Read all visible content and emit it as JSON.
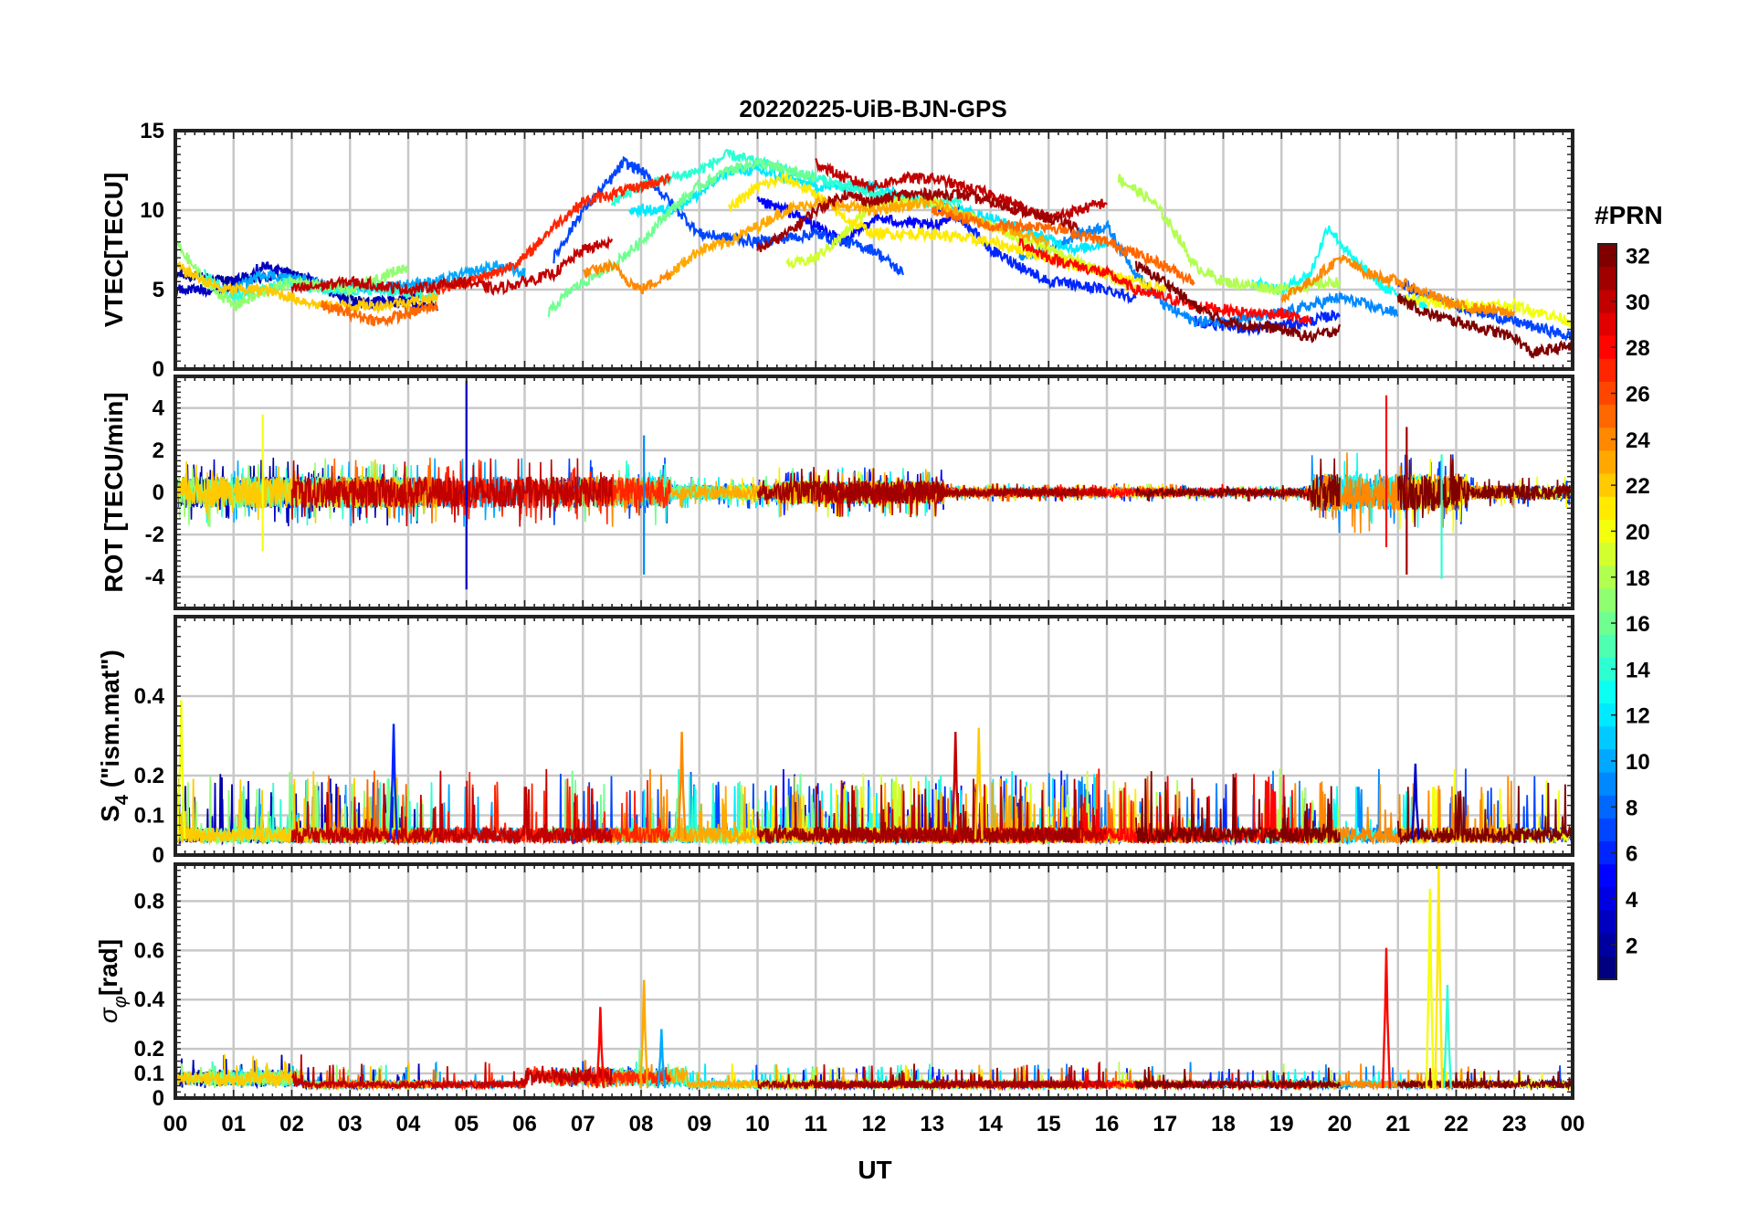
{
  "chart_data": {
    "type": "line",
    "title": "20220225-UiB-BJN-GPS",
    "xlabel": "UT",
    "xlim": [
      0,
      24
    ],
    "x_tick_labels": [
      "00",
      "01",
      "02",
      "03",
      "04",
      "05",
      "06",
      "07",
      "08",
      "09",
      "10",
      "11",
      "12",
      "13",
      "14",
      "15",
      "16",
      "17",
      "18",
      "19",
      "20",
      "21",
      "22",
      "23",
      "00"
    ],
    "panels": [
      {
        "id": "vtec",
        "ylabel": "VTEC[TECU]",
        "ylim": [
          0,
          15
        ],
        "yticks": [
          0,
          5,
          10,
          15
        ],
        "ytick_labels": [
          "0",
          "5",
          "10",
          "15"
        ],
        "baseline_envelope": {
          "x": [
            0,
            2,
            4,
            5,
            6,
            7,
            8,
            9,
            10,
            11,
            12,
            13,
            14,
            15,
            16,
            17,
            18,
            19,
            20,
            21,
            22,
            23,
            24
          ],
          "y": [
            5.5,
            5.0,
            4.5,
            5.5,
            6.0,
            8.0,
            9.5,
            11.0,
            11.5,
            11.0,
            10.5,
            10.5,
            9.5,
            8.0,
            6.5,
            5.0,
            4.0,
            4.5,
            6.0,
            5.0,
            4.0,
            3.0,
            2.5
          ]
        }
      },
      {
        "id": "rot",
        "ylabel": "ROT [TECU/min]",
        "ylim": [
          -5.5,
          5.5
        ],
        "yticks": [
          -4,
          -2,
          0,
          2,
          4
        ],
        "ytick_labels": [
          "-4",
          "-2",
          "0",
          "2",
          "4"
        ],
        "spikes": [
          {
            "x": 5.0,
            "y_max": 5.3,
            "y_min": -4.6,
            "prn": 3
          },
          {
            "x": 8.05,
            "y_max": 2.7,
            "y_min": -3.9,
            "prn": 9
          },
          {
            "x": 20.8,
            "y_max": 4.6,
            "y_min": -2.6,
            "prn": 28
          },
          {
            "x": 21.15,
            "y_max": 3.1,
            "y_min": -3.9,
            "prn": 31
          },
          {
            "x": 21.75,
            "y_max": 1.8,
            "y_min": -4.1,
            "prn": 14
          },
          {
            "x": 1.5,
            "y_max": 3.7,
            "y_min": -2.8,
            "prn": 20
          }
        ]
      },
      {
        "id": "s4",
        "ylabel": "S4 (\"ism.mat\")",
        "ylim": [
          0,
          0.6
        ],
        "yticks": [
          0,
          0.1,
          0.2,
          0.4
        ],
        "ytick_labels": [
          "0",
          "0.1",
          "0.2",
          "0.4"
        ],
        "peaks": [
          {
            "x": 0.1,
            "y": 0.39,
            "prn": 20
          },
          {
            "x": 3.75,
            "y": 0.33,
            "prn": 6
          },
          {
            "x": 8.7,
            "y": 0.31,
            "prn": 24
          },
          {
            "x": 13.4,
            "y": 0.31,
            "prn": 30
          },
          {
            "x": 13.8,
            "y": 0.32,
            "prn": 22
          },
          {
            "x": 21.3,
            "y": 0.23,
            "prn": 3
          }
        ]
      },
      {
        "id": "sigma_phi",
        "ylabel": "σφ[rad]",
        "ylim": [
          0,
          0.95
        ],
        "yticks": [
          0,
          0.1,
          0.2,
          0.4,
          0.6,
          0.8
        ],
        "ytick_labels": [
          "0",
          "0.1",
          "0.2",
          "0.4",
          "0.6",
          "0.8"
        ],
        "peaks": [
          {
            "x": 7.3,
            "y": 0.37,
            "prn": 28
          },
          {
            "x": 8.05,
            "y": 0.48,
            "prn": 23
          },
          {
            "x": 8.35,
            "y": 0.28,
            "prn": 10
          },
          {
            "x": 20.8,
            "y": 0.61,
            "prn": 28
          },
          {
            "x": 21.55,
            "y": 0.85,
            "prn": 20
          },
          {
            "x": 21.7,
            "y": 0.95,
            "prn": 21
          },
          {
            "x": 21.85,
            "y": 0.46,
            "prn": 14
          }
        ]
      }
    ],
    "colorbar": {
      "label": "#PRN",
      "colormap": "jet",
      "range": [
        1,
        32
      ],
      "ticks": [
        2,
        4,
        6,
        8,
        10,
        12,
        14,
        16,
        18,
        20,
        22,
        24,
        26,
        28,
        30,
        32
      ],
      "tick_labels": [
        "2",
        "4",
        "6",
        "8",
        "10",
        "12",
        "14",
        "16",
        "18",
        "20",
        "22",
        "24",
        "26",
        "28",
        "30",
        "32"
      ]
    },
    "series": [
      {
        "name": "PRN 2",
        "prn": 2,
        "vtec": {
          "x": [
            0.0,
            1.0,
            2.0,
            3.0,
            3.5,
            4.5
          ],
          "y": [
            6.0,
            5.5,
            6.0,
            4.5,
            4.2,
            4.0
          ]
        }
      },
      {
        "name": "PRN 3",
        "prn": 3,
        "vtec": {
          "x": [
            0.0,
            0.8,
            1.5,
            2.4,
            3.0,
            4.2
          ],
          "y": [
            5.0,
            5.0,
            6.5,
            5.5,
            4.0,
            4.5
          ]
        }
      },
      {
        "name": "PRN 5",
        "prn": 5,
        "vtec": {
          "x": [
            10.0,
            10.5,
            11.5,
            12.0,
            13.0,
            13.5
          ],
          "y": [
            10.5,
            10.0,
            8.0,
            9.5,
            9.0,
            10.0
          ]
        }
      },
      {
        "name": "PRN 6",
        "prn": 6,
        "vtec": {
          "x": [
            13.0,
            13.5,
            14.0,
            15.0,
            16.0,
            16.5
          ],
          "y": [
            10.5,
            9.5,
            7.5,
            5.5,
            5.0,
            4.5
          ]
        }
      },
      {
        "name": "PRN 6",
        "prn": 6,
        "vtec": {
          "x": [
            17.5,
            18.5,
            19.5,
            20.0
          ],
          "y": [
            3.0,
            2.5,
            3.0,
            3.5
          ]
        }
      },
      {
        "name": "PRN 7",
        "prn": 7,
        "vtec": {
          "x": [
            6.5,
            7.0,
            7.5,
            7.7,
            8.0,
            8.5,
            9.0,
            10.0,
            11.0,
            12.0,
            12.5
          ],
          "y": [
            7.0,
            10.0,
            12.0,
            13.0,
            12.5,
            10.5,
            8.5,
            8.0,
            8.5,
            7.5,
            6.0
          ]
        }
      },
      {
        "name": "PRN 7",
        "prn": 7,
        "vtec": {
          "x": [
            21.0,
            21.5,
            22.0,
            23.0,
            24.0
          ],
          "y": [
            5.5,
            4.5,
            4.0,
            3.0,
            2.0
          ]
        }
      },
      {
        "name": "PRN 9",
        "prn": 9,
        "vtec": {
          "x": [
            14.5,
            15.0,
            15.5,
            16.0,
            16.5,
            17.0,
            17.5,
            18.0,
            19.0,
            20.0,
            21.0
          ],
          "y": [
            7.0,
            7.5,
            8.5,
            9.0,
            6.0,
            4.0,
            3.0,
            3.0,
            3.5,
            4.5,
            3.5
          ]
        }
      },
      {
        "name": "PRN 10",
        "prn": 10,
        "vtec": {
          "x": [
            1.0,
            1.5,
            3.0,
            4.5,
            5.5,
            6.0
          ],
          "y": [
            5.0,
            6.0,
            5.0,
            5.5,
            6.5,
            6.0
          ]
        }
      },
      {
        "name": "PRN 12",
        "prn": 12,
        "vtec": {
          "x": [
            7.8,
            8.5,
            9.0,
            9.5,
            10.0,
            11.0,
            12.0,
            13.0,
            14.0,
            15.5,
            16.0
          ],
          "y": [
            10.0,
            10.0,
            11.0,
            12.5,
            12.5,
            11.5,
            11.5,
            10.5,
            9.5,
            7.5,
            8.0
          ]
        }
      },
      {
        "name": "PRN 13",
        "prn": 13,
        "vtec": {
          "x": [
            18.5,
            19.0,
            19.5,
            19.8,
            20.2,
            20.8,
            21.5
          ],
          "y": [
            5.5,
            5.0,
            6.0,
            9.0,
            7.0,
            5.0,
            4.0
          ]
        }
      },
      {
        "name": "PRN 14",
        "prn": 14,
        "vtec": {
          "x": [
            0.5,
            1.0,
            2.0,
            2.5,
            3.5,
            4.5
          ],
          "y": [
            6.0,
            4.5,
            5.5,
            5.0,
            5.0,
            4.5
          ]
        }
      },
      {
        "name": "PRN 14",
        "prn": 14,
        "vtec": {
          "x": [
            7.5,
            8.0,
            9.0,
            9.5,
            10.0,
            10.5,
            11.0,
            12.0,
            13.0,
            13.5
          ],
          "y": [
            10.5,
            11.5,
            12.5,
            13.5,
            13.0,
            12.5,
            12.0,
            11.0,
            10.5,
            10.5
          ]
        }
      },
      {
        "name": "PRN 16",
        "prn": 16,
        "vtec": {
          "x": [
            6.4,
            6.8,
            7.5,
            8.0,
            8.5,
            9.0,
            9.5,
            10.0,
            10.5,
            11.0
          ],
          "y": [
            3.5,
            5.0,
            6.5,
            8.0,
            10.0,
            11.5,
            12.5,
            13.0,
            12.5,
            12.0
          ]
        }
      },
      {
        "name": "PRN 17",
        "prn": 17,
        "vtec": {
          "x": [
            0.0,
            0.5,
            1.0,
            2.0,
            3.0,
            4.0
          ],
          "y": [
            8.0,
            5.5,
            4.0,
            5.5,
            5.0,
            6.5
          ]
        }
      },
      {
        "name": "PRN 18",
        "prn": 18,
        "vtec": {
          "x": [
            16.2,
            16.8,
            17.2,
            17.5,
            18.0,
            19.0,
            20.0
          ],
          "y": [
            12.0,
            10.5,
            8.5,
            6.5,
            5.5,
            5.0,
            5.5
          ]
        }
      },
      {
        "name": "PRN 19",
        "prn": 19,
        "vtec": {
          "x": [
            10.5,
            11.0,
            11.5,
            12.0,
            13.0,
            14.0,
            15.0,
            16.0,
            16.5
          ],
          "y": [
            6.5,
            7.0,
            8.5,
            10.5,
            10.5,
            9.0,
            7.5,
            6.0,
            5.0
          ]
        }
      },
      {
        "name": "PRN 20",
        "prn": 20,
        "vtec": {
          "x": [
            21.0,
            22.0,
            23.0,
            23.5,
            24.0
          ],
          "y": [
            4.5,
            4.0,
            4.0,
            3.5,
            3.0
          ]
        }
      },
      {
        "name": "PRN 21",
        "prn": 21,
        "vtec": {
          "x": [
            9.5,
            10.0,
            10.5,
            11.0,
            11.5,
            12.0,
            13.0,
            14.0,
            15.0,
            16.0,
            17.0
          ],
          "y": [
            10.0,
            11.5,
            12.0,
            11.0,
            9.5,
            8.5,
            8.5,
            8.0,
            7.0,
            6.0,
            5.0
          ]
        }
      },
      {
        "name": "PRN 22",
        "prn": 22,
        "vtec": {
          "x": [
            0.0,
            0.8,
            1.5,
            2.5,
            3.5,
            4.5
          ],
          "y": [
            6.5,
            5.0,
            5.0,
            4.0,
            4.0,
            4.5
          ]
        }
      },
      {
        "name": "PRN 23",
        "prn": 23,
        "vtec": {
          "x": [
            8.5,
            9.0,
            9.5,
            10.0,
            10.5,
            11.0,
            12.0,
            13.0,
            14.0,
            15.0
          ],
          "y": [
            6.0,
            7.5,
            8.0,
            9.0,
            10.0,
            10.5,
            10.0,
            10.5,
            9.0,
            8.0
          ]
        }
      },
      {
        "name": "PRN 24",
        "prn": 24,
        "vtec": {
          "x": [
            7.0,
            7.5,
            7.8,
            8.0,
            8.5
          ],
          "y": [
            6.0,
            6.5,
            5.5,
            5.0,
            6.0
          ]
        }
      },
      {
        "name": "PRN 24",
        "prn": 24,
        "vtec": {
          "x": [
            19.0,
            19.5,
            20.0,
            20.5,
            21.0,
            22.0,
            23.0
          ],
          "y": [
            4.5,
            5.5,
            7.0,
            6.0,
            5.5,
            4.0,
            3.5
          ]
        }
      },
      {
        "name": "PRN 25",
        "prn": 25,
        "vtec": {
          "x": [
            2.5,
            3.0,
            3.5,
            4.0,
            4.5
          ],
          "y": [
            4.0,
            3.5,
            3.0,
            3.5,
            4.0
          ]
        }
      },
      {
        "name": "PRN 25",
        "prn": 25,
        "vtec": {
          "x": [
            13.0,
            14.0,
            15.0,
            16.0,
            17.0,
            17.5
          ],
          "y": [
            10.0,
            9.0,
            9.0,
            8.0,
            6.5,
            5.5
          ]
        }
      },
      {
        "name": "PRN 27",
        "prn": 27,
        "vtec": {
          "x": [
            4.5,
            5.5,
            6.0,
            6.5,
            7.0,
            7.5,
            8.0,
            8.5
          ],
          "y": [
            5.0,
            6.0,
            7.0,
            9.0,
            10.5,
            11.0,
            11.5,
            12.0
          ]
        }
      },
      {
        "name": "PRN 28",
        "prn": 28,
        "vtec": {
          "x": [
            14.5,
            15.0,
            15.5,
            16.0,
            16.5,
            17.5,
            18.5,
            19.0,
            19.5
          ],
          "y": [
            8.0,
            7.0,
            6.5,
            6.0,
            5.0,
            4.0,
            3.5,
            3.5,
            3.0
          ]
        }
      },
      {
        "name": "PRN 30",
        "prn": 30,
        "vtec": {
          "x": [
            2.0,
            3.0,
            4.0,
            5.0,
            5.5,
            6.5,
            7.0,
            7.5
          ],
          "y": [
            5.0,
            5.5,
            5.0,
            5.5,
            5.0,
            6.0,
            7.5,
            8.0
          ]
        }
      },
      {
        "name": "PRN 30",
        "prn": 30,
        "vtec": {
          "x": [
            11.0,
            11.5,
            12.0,
            12.5,
            13.0,
            13.5,
            14.0,
            15.0,
            16.0
          ],
          "y": [
            13.0,
            12.0,
            11.5,
            12.0,
            12.0,
            11.5,
            11.0,
            9.5,
            10.5
          ]
        }
      },
      {
        "name": "PRN 31",
        "prn": 31,
        "vtec": {
          "x": [
            10.0,
            10.5,
            11.0,
            11.5,
            12.0,
            12.5,
            13.5,
            14.5,
            15.5
          ],
          "y": [
            7.5,
            8.5,
            10.0,
            11.0,
            10.5,
            11.0,
            11.0,
            10.0,
            9.0
          ]
        }
      },
      {
        "name": "PRN 32",
        "prn": 32,
        "vtec": {
          "x": [
            16.5,
            17.0,
            17.5,
            18.0,
            19.0,
            19.5,
            20.0
          ],
          "y": [
            6.5,
            5.5,
            4.0,
            3.0,
            2.5,
            2.0,
            2.5
          ]
        }
      },
      {
        "name": "PRN 32",
        "prn": 32,
        "vtec": {
          "x": [
            21.0,
            21.5,
            22.0,
            22.5,
            23.0,
            23.3,
            24.0
          ],
          "y": [
            4.5,
            3.5,
            3.0,
            2.5,
            2.0,
            1.0,
            1.5
          ]
        }
      }
    ]
  }
}
